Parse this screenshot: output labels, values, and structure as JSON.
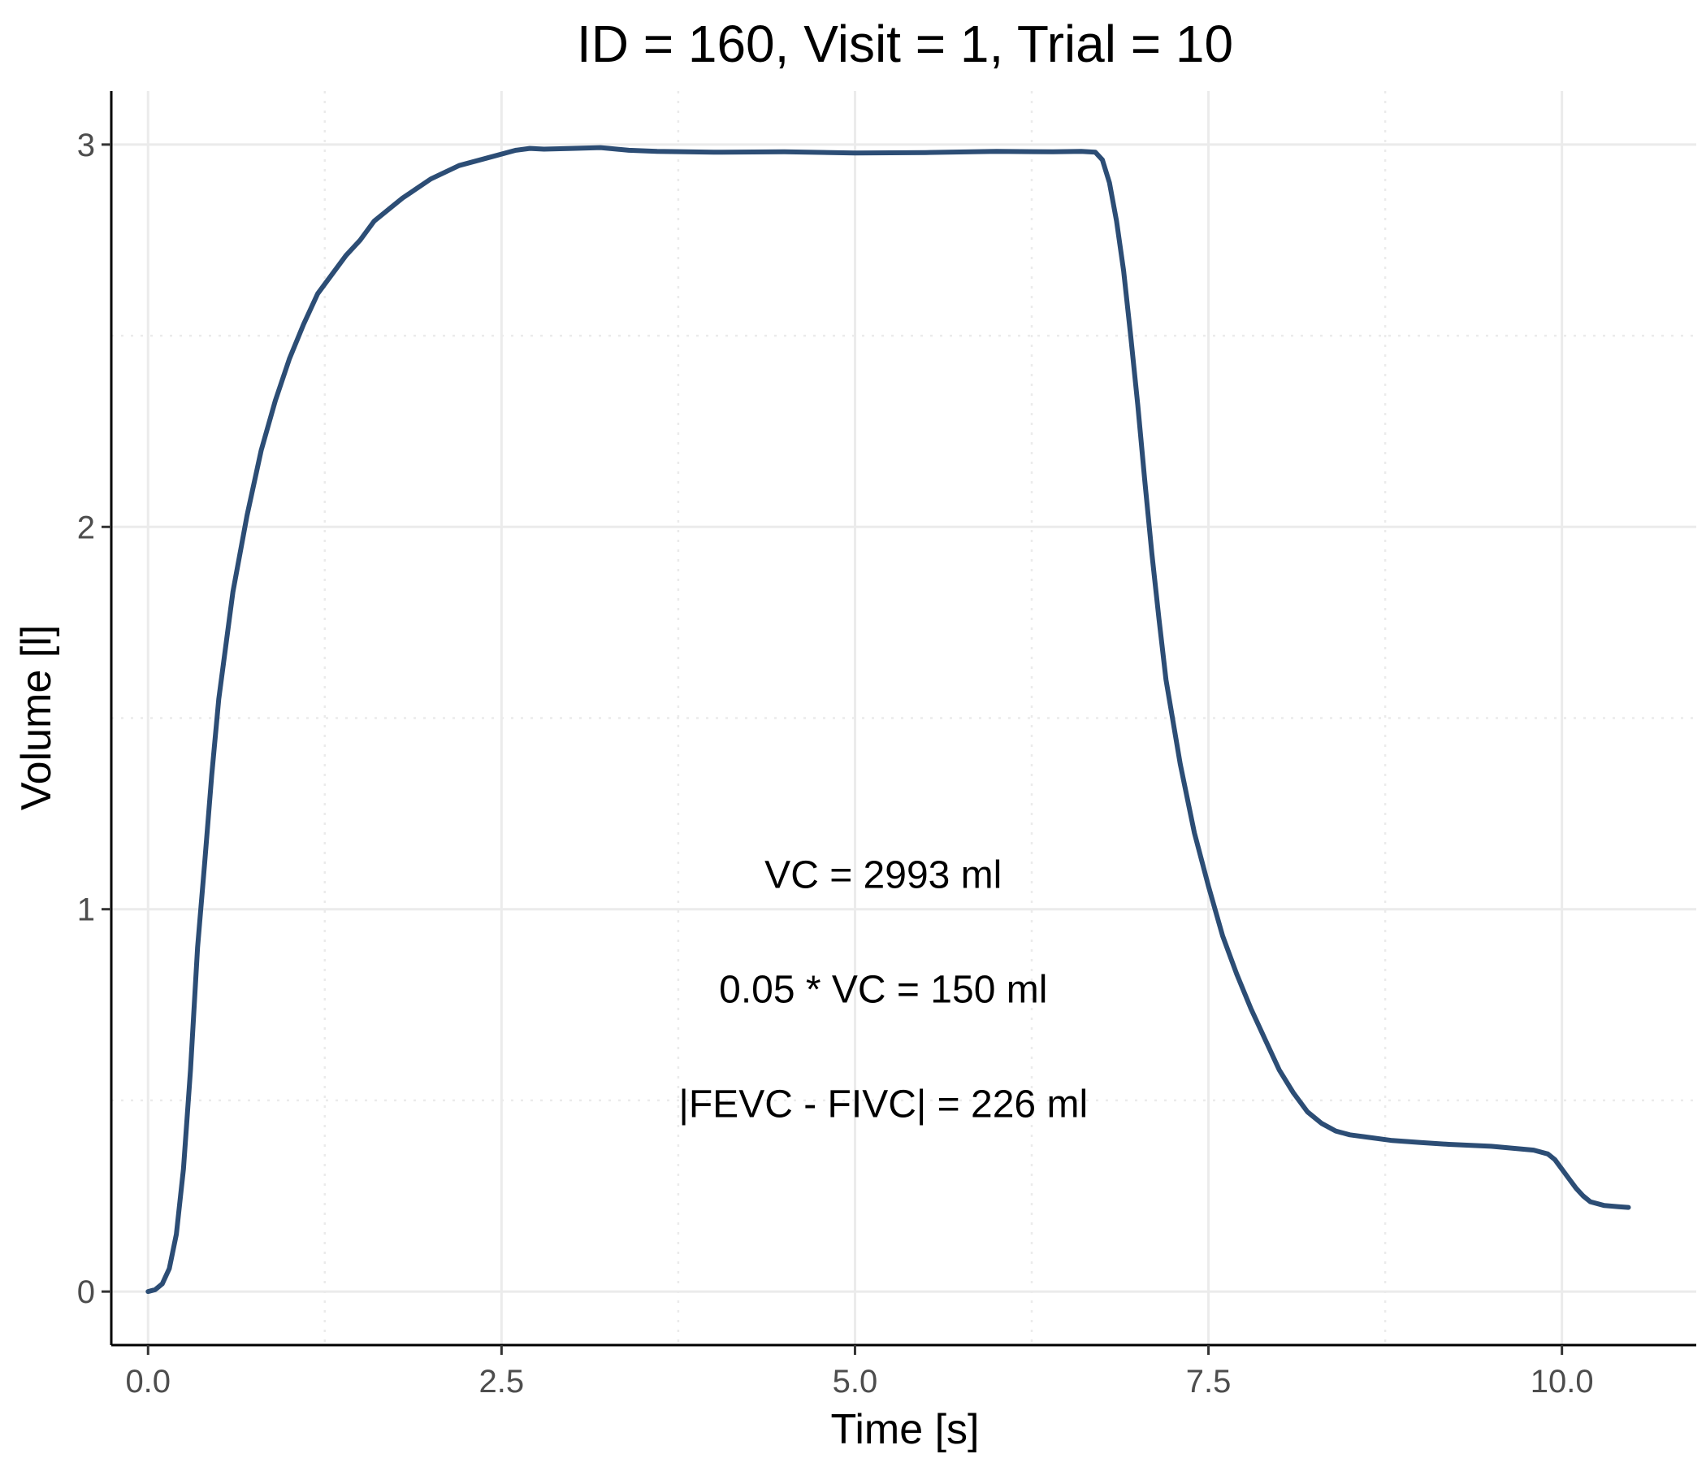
{
  "chart_data": {
    "type": "line",
    "title": "ID = 160, Visit = 1, Trial = 10",
    "xlabel": "Time [s]",
    "ylabel": "Volume [l]",
    "xlim": [
      -0.26,
      10.95
    ],
    "ylim": [
      -0.14,
      3.14
    ],
    "x_ticks": [
      {
        "value": 0.0,
        "label": "0.0"
      },
      {
        "value": 2.5,
        "label": "2.5"
      },
      {
        "value": 5.0,
        "label": "5.0"
      },
      {
        "value": 7.5,
        "label": "7.5"
      },
      {
        "value": 10.0,
        "label": "10.0"
      }
    ],
    "y_ticks": [
      {
        "value": 0,
        "label": "0"
      },
      {
        "value": 1,
        "label": "1"
      },
      {
        "value": 2,
        "label": "2"
      },
      {
        "value": 3,
        "label": "3"
      }
    ],
    "x_minor_ticks": [
      1.25,
      3.75,
      6.25,
      8.75
    ],
    "y_minor_ticks": [
      0.5,
      1.5,
      2.5
    ],
    "grid": true,
    "legend": "none",
    "line_color": "#2c4d75",
    "grid_color": "#ebebeb",
    "annotations": [
      {
        "text": "VC = 2993 ml",
        "x": 5.2,
        "y": 1.09
      },
      {
        "text": "0.05 * VC = 150 ml",
        "x": 5.2,
        "y": 0.79
      },
      {
        "text": "|FEVC - FIVC| = 226 ml",
        "x": 5.2,
        "y": 0.49
      }
    ],
    "series": [
      {
        "x": [
          0.0,
          0.05,
          0.1,
          0.15,
          0.2,
          0.25,
          0.3,
          0.35,
          0.4,
          0.45,
          0.5,
          0.6,
          0.7,
          0.8,
          0.9,
          1.0,
          1.1,
          1.2,
          1.3,
          1.4,
          1.5,
          1.6,
          1.7,
          1.8,
          2.0,
          2.2,
          2.4,
          2.6,
          2.7,
          2.8,
          3.0,
          3.2,
          3.4,
          3.6,
          4.0,
          4.5,
          5.0,
          5.5,
          6.0,
          6.4,
          6.6,
          6.7,
          6.75,
          6.8,
          6.85,
          6.9,
          6.95,
          7.0,
          7.05,
          7.1,
          7.15,
          7.2,
          7.3,
          7.4,
          7.5,
          7.6,
          7.7,
          7.8,
          7.9,
          8.0,
          8.1,
          8.2,
          8.3,
          8.4,
          8.5,
          8.6,
          8.8,
          9.0,
          9.2,
          9.5,
          9.8,
          9.9,
          9.95,
          10.0,
          10.05,
          10.1,
          10.15,
          10.2,
          10.3,
          10.4,
          10.47
        ],
        "y": [
          0.0,
          0.005,
          0.02,
          0.06,
          0.15,
          0.32,
          0.58,
          0.9,
          1.12,
          1.35,
          1.55,
          1.83,
          2.03,
          2.2,
          2.33,
          2.44,
          2.53,
          2.61,
          2.66,
          2.71,
          2.75,
          2.8,
          2.83,
          2.86,
          2.91,
          2.945,
          2.965,
          2.985,
          2.99,
          2.988,
          2.99,
          2.992,
          2.985,
          2.982,
          2.98,
          2.981,
          2.978,
          2.979,
          2.982,
          2.981,
          2.982,
          2.98,
          2.96,
          2.9,
          2.8,
          2.67,
          2.5,
          2.32,
          2.12,
          1.93,
          1.76,
          1.6,
          1.38,
          1.2,
          1.06,
          0.93,
          0.83,
          0.74,
          0.66,
          0.58,
          0.52,
          0.47,
          0.44,
          0.42,
          0.41,
          0.405,
          0.395,
          0.39,
          0.385,
          0.38,
          0.37,
          0.36,
          0.345,
          0.32,
          0.295,
          0.27,
          0.25,
          0.235,
          0.225,
          0.222,
          0.22
        ]
      }
    ]
  }
}
